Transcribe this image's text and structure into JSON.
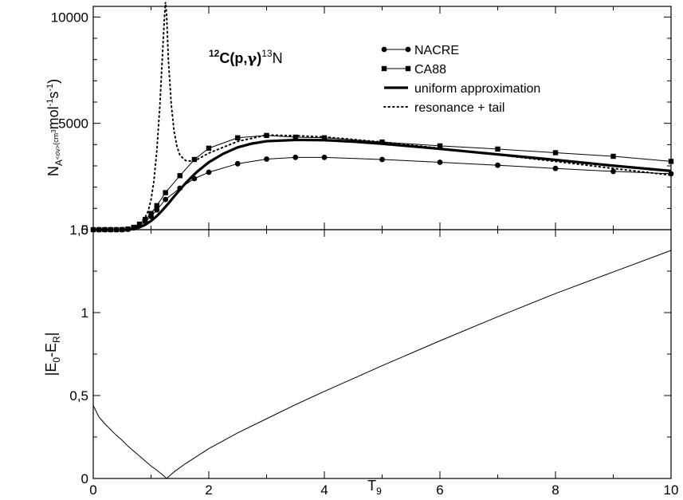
{
  "chart_data": [
    {
      "type": "line",
      "panel": "top",
      "title": "12C(p,γ)13N",
      "title_parts": {
        "mass1": "12",
        "reaction": "C(p,",
        "gamma": "γ",
        "close": ")",
        "mass2": "13",
        "product": "N"
      },
      "ylabel_parts": {
        "base": "N",
        "sub": "A",
        "subsub": "<σv>",
        "unit1": "(cm",
        "sup1": "3",
        "unit2": "mol",
        "sup2": "-1",
        "unit3": "s",
        "sup3": "-1",
        "close": ")"
      },
      "xlim": [
        0,
        10
      ],
      "ylim": [
        0,
        10500
      ],
      "y_ticks": [
        0,
        5000,
        10000
      ],
      "y_tick_labels": [
        "0",
        "5000",
        "10000"
      ],
      "grid": false,
      "legend_position": "top-right",
      "series": [
        {
          "name": "NACRE",
          "style": "solid-circle",
          "x": [
            0,
            0.1,
            0.2,
            0.3,
            0.4,
            0.5,
            0.6,
            0.7,
            0.8,
            0.9,
            1.0,
            1.1,
            1.25,
            1.5,
            1.75,
            2.0,
            2.5,
            3.0,
            3.5,
            4.0,
            5.0,
            6.0,
            7.0,
            8.0,
            9.0,
            10.0
          ],
          "y": [
            0,
            0,
            0,
            0,
            0,
            2,
            20,
            80,
            190,
            380,
            620,
            930,
            1420,
            1950,
            2400,
            2700,
            3100,
            3320,
            3400,
            3400,
            3300,
            3170,
            3030,
            2880,
            2740,
            2630
          ]
        },
        {
          "name": "CA88",
          "style": "solid-square",
          "x": [
            0,
            0.1,
            0.2,
            0.3,
            0.4,
            0.5,
            0.6,
            0.7,
            0.8,
            0.9,
            1.0,
            1.1,
            1.25,
            1.5,
            1.75,
            2.0,
            2.5,
            3.0,
            3.5,
            4.0,
            5.0,
            6.0,
            7.0,
            8.0,
            9.0,
            10.0
          ],
          "y": [
            0,
            0,
            0,
            0,
            0,
            3,
            30,
            110,
            260,
            480,
            760,
            1130,
            1740,
            2540,
            3300,
            3830,
            4320,
            4430,
            4350,
            4320,
            4120,
            3940,
            3790,
            3620,
            3450,
            3210
          ]
        },
        {
          "name": "uniform approximation",
          "style": "thick-solid",
          "x": [
            0,
            0.5,
            0.6,
            0.7,
            0.8,
            0.9,
            1.0,
            1.1,
            1.2,
            1.3,
            1.4,
            1.5,
            1.6,
            1.7,
            1.8,
            2.0,
            2.25,
            2.5,
            2.75,
            3.0,
            3.5,
            4.0,
            4.5,
            5.0,
            6.0,
            7.0,
            8.0,
            9.0,
            10.0
          ],
          "y": [
            0,
            0,
            10,
            40,
            110,
            230,
            410,
            640,
            920,
            1230,
            1560,
            1880,
            2190,
            2470,
            2730,
            3170,
            3570,
            3870,
            4050,
            4160,
            4220,
            4210,
            4140,
            4040,
            3800,
            3540,
            3280,
            3010,
            2760
          ]
        },
        {
          "name": "resonance + tail",
          "style": "dotted",
          "x": [
            0,
            0.5,
            0.6,
            0.7,
            0.8,
            0.9,
            0.95,
            1.0,
            1.05,
            1.1,
            1.15,
            1.2,
            1.23,
            1.25,
            1.27,
            1.3,
            1.35,
            1.4,
            1.45,
            1.5,
            1.6,
            1.7,
            1.8,
            2.0,
            2.5,
            3.0,
            3.5,
            4.0,
            5.0,
            6.0,
            7.0,
            8.0,
            9.0,
            10.0
          ],
          "y": [
            0,
            0,
            30,
            110,
            270,
            580,
            870,
            1400,
            2300,
            3700,
            5700,
            8300,
            9900,
            10700,
            10100,
            8000,
            5900,
            4600,
            3900,
            3500,
            3250,
            3220,
            3300,
            3600,
            4150,
            4450,
            4420,
            4360,
            4120,
            3830,
            3520,
            3210,
            2880,
            2560
          ]
        }
      ]
    },
    {
      "type": "line",
      "panel": "bottom",
      "xlabel_parts": {
        "base": "T",
        "sub": "9"
      },
      "ylabel_parts": {
        "open": "|E",
        "sub1": "0",
        "mid": "-E",
        "sub2": "R",
        "close": "|"
      },
      "xlim": [
        0,
        10
      ],
      "ylim": [
        0,
        1.5
      ],
      "x_ticks": [
        0,
        2,
        4,
        6,
        8,
        10
      ],
      "x_tick_labels": [
        "0",
        "2",
        "4",
        "6",
        "8",
        "10"
      ],
      "y_ticks": [
        0,
        0.5,
        1,
        1.5
      ],
      "y_tick_labels": [
        "0",
        "0,5",
        "1",
        "1,5"
      ],
      "grid": false,
      "series": [
        {
          "x": [
            0,
            0.1,
            0.2,
            0.3,
            0.4,
            0.5,
            0.6,
            0.7,
            0.8,
            0.9,
            1.0,
            1.1,
            1.2,
            1.27,
            1.4,
            1.6,
            1.8,
            2.0,
            2.5,
            3.0,
            3.5,
            4.0,
            5.0,
            6.0,
            7.0,
            8.0,
            9.0,
            10.0
          ],
          "y": [
            0.44,
            0.37,
            0.33,
            0.295,
            0.26,
            0.23,
            0.195,
            0.165,
            0.135,
            0.105,
            0.075,
            0.05,
            0.022,
            0,
            0.04,
            0.09,
            0.135,
            0.18,
            0.275,
            0.36,
            0.445,
            0.525,
            0.68,
            0.83,
            0.975,
            1.115,
            1.245,
            1.375
          ]
        }
      ]
    }
  ]
}
